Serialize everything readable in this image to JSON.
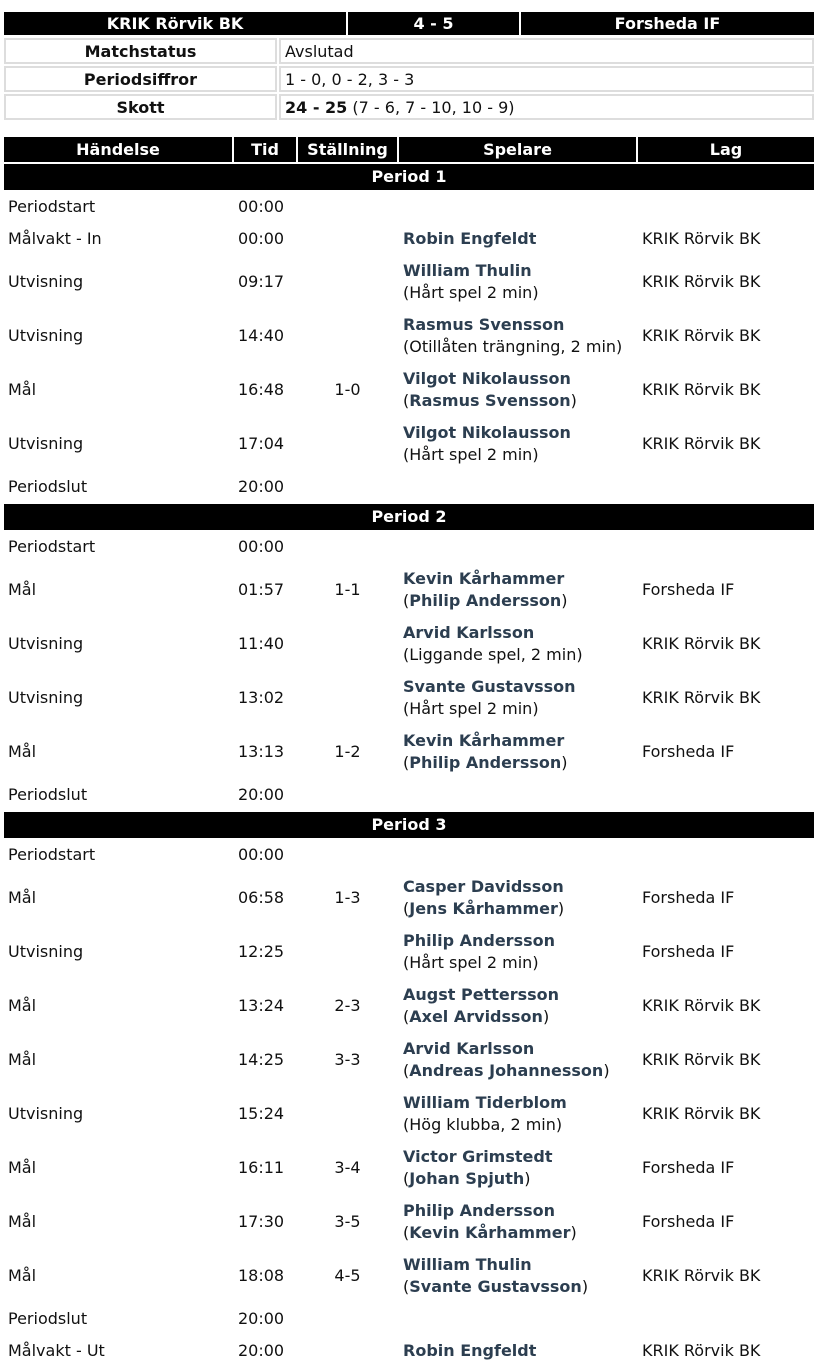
{
  "match": {
    "home": "KRIK Rörvik BK",
    "score": "4 - 5",
    "away": "Forsheda IF"
  },
  "info": [
    {
      "label": "Matchstatus",
      "value": "Avslutad",
      "value_bold": ""
    },
    {
      "label": "Periodsiffror",
      "value": "1 - 0, 0 - 2, 3 - 3",
      "value_bold": ""
    },
    {
      "label": "Skott",
      "value_bold": "24 - 25",
      "value": " (7 - 6, 7 - 10, 10 - 9)"
    }
  ],
  "columns": [
    "Händelse",
    "Tid",
    "Ställning",
    "Spelare",
    "Lag"
  ],
  "player_color": "#2c3e50",
  "periods": [
    {
      "title": "Period 1",
      "events": [
        {
          "type": "Periodstart",
          "time": "00:00"
        },
        {
          "type": "Målvakt - In",
          "time": "00:00",
          "player": "Robin Engfeldt",
          "team": "KRIK Rörvik BK"
        },
        {
          "type": "Utvisning",
          "time": "09:17",
          "player": "William Thulin",
          "detail": "(Hårt spel 2 min)",
          "team": "KRIK Rörvik BK"
        },
        {
          "type": "Utvisning",
          "time": "14:40",
          "player": "Rasmus Svensson",
          "detail": "(Otillåten trängning, 2 min)",
          "team": "KRIK Rörvik BK"
        },
        {
          "type": "Mål",
          "time": "16:48",
          "score": "1-0",
          "player": "Vilgot Nikolausson",
          "assist": "Rasmus Svensson",
          "team": "KRIK Rörvik BK"
        },
        {
          "type": "Utvisning",
          "time": "17:04",
          "player": "Vilgot Nikolausson",
          "detail": "(Hårt spel 2 min)",
          "team": "KRIK Rörvik BK"
        },
        {
          "type": "Periodslut",
          "time": "20:00"
        }
      ]
    },
    {
      "title": "Period 2",
      "events": [
        {
          "type": "Periodstart",
          "time": "00:00"
        },
        {
          "type": "Mål",
          "time": "01:57",
          "score": "1-1",
          "player": "Kevin Kårhammer",
          "assist": "Philip Andersson",
          "team": "Forsheda IF"
        },
        {
          "type": "Utvisning",
          "time": "11:40",
          "player": "Arvid Karlsson",
          "detail": "(Liggande spel, 2 min)",
          "team": "KRIK Rörvik BK"
        },
        {
          "type": "Utvisning",
          "time": "13:02",
          "player": "Svante Gustavsson",
          "detail": "(Hårt spel 2 min)",
          "team": "KRIK Rörvik BK"
        },
        {
          "type": "Mål",
          "time": "13:13",
          "score": "1-2",
          "player": "Kevin Kårhammer",
          "assist": "Philip Andersson",
          "team": "Forsheda IF"
        },
        {
          "type": "Periodslut",
          "time": "20:00"
        }
      ]
    },
    {
      "title": "Period 3",
      "events": [
        {
          "type": "Periodstart",
          "time": "00:00"
        },
        {
          "type": "Mål",
          "time": "06:58",
          "score": "1-3",
          "player": "Casper Davidsson",
          "assist": "Jens Kårhammer",
          "team": "Forsheda IF"
        },
        {
          "type": "Utvisning",
          "time": "12:25",
          "player": "Philip Andersson",
          "detail": "(Hårt spel 2 min)",
          "team": "Forsheda IF"
        },
        {
          "type": "Mål",
          "time": "13:24",
          "score": "2-3",
          "player": "Augst Pettersson",
          "assist": "Axel Arvidsson",
          "team": "KRIK Rörvik BK"
        },
        {
          "type": "Mål",
          "time": "14:25",
          "score": "3-3",
          "player": "Arvid Karlsson",
          "assist": "Andreas Johannesson",
          "team": "KRIK Rörvik BK"
        },
        {
          "type": "Utvisning",
          "time": "15:24",
          "player": "William Tiderblom",
          "detail": "(Hög klubba, 2 min)",
          "team": "KRIK Rörvik BK"
        },
        {
          "type": "Mål",
          "time": "16:11",
          "score": "3-4",
          "player": "Victor Grimstedt",
          "assist": "Johan Spjuth",
          "team": "Forsheda IF"
        },
        {
          "type": "Mål",
          "time": "17:30",
          "score": "3-5",
          "player": "Philip Andersson",
          "assist": "Kevin Kårhammer",
          "team": "Forsheda IF"
        },
        {
          "type": "Mål",
          "time": "18:08",
          "score": "4-5",
          "player": "William Thulin",
          "assist": "Svante Gustavsson",
          "team": "KRIK Rörvik BK"
        },
        {
          "type": "Periodslut",
          "time": "20:00"
        },
        {
          "type": "Målvakt - Ut",
          "time": "20:00",
          "player": "Robin Engfeldt",
          "team": "KRIK Rörvik BK"
        }
      ]
    }
  ]
}
